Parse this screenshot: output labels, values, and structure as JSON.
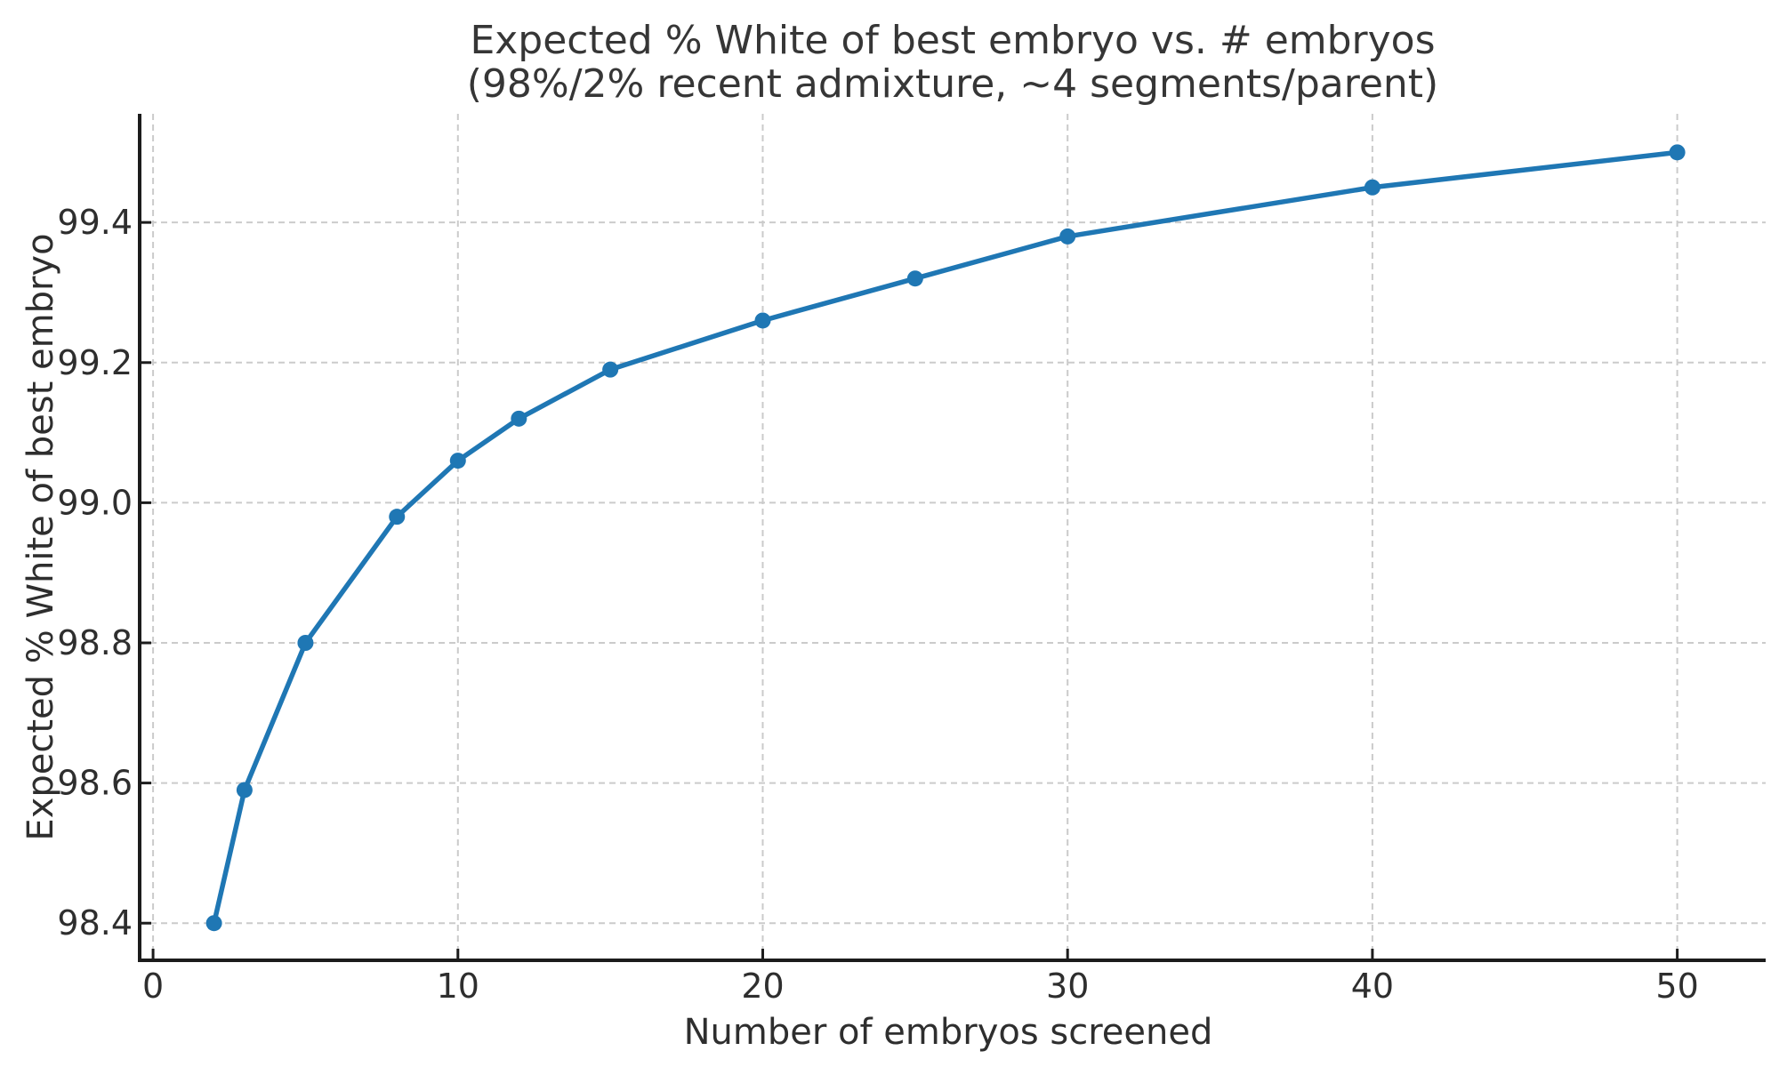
{
  "page": {
    "background_color": "#ffffff"
  },
  "chart_data": {
    "type": "line",
    "title": "Expected % White of best embryo vs. # embryos (98%/2% recent admixture, ~4 segments/parent)",
    "title_line1": "Expected % White of best embryo vs. # embryos",
    "title_line2": "(98%/2% recent admixture, ~4 segments/parent)",
    "xlabel": "Number of embryos screened",
    "ylabel": "Expected % White of best embryo",
    "x": [
      2,
      3,
      5,
      8,
      10,
      12,
      15,
      20,
      25,
      30,
      40,
      50
    ],
    "values": [
      98.4,
      98.59,
      98.8,
      98.98,
      99.06,
      99.12,
      99.19,
      99.26,
      99.32,
      99.38,
      99.45,
      99.5
    ],
    "series_name": "Expected % White of best embryo",
    "xticks": [
      0,
      10,
      20,
      30,
      40,
      50
    ],
    "xtick_labels": [
      "0",
      "10",
      "20",
      "30",
      "40",
      "50"
    ],
    "yticks": [
      98.4,
      98.6,
      98.8,
      99.0,
      99.2,
      99.4
    ],
    "ytick_labels": [
      "98.4",
      "98.6",
      "98.8",
      "99.0",
      "99.2",
      "99.4"
    ],
    "xlim": [
      -0.44,
      52.9
    ],
    "ylim": [
      98.347,
      99.555
    ],
    "grid": true,
    "grid_style": "dashed",
    "legend": "none",
    "marker": "circle",
    "colors": {
      "line": "#1f77b4",
      "marker": "#1f77b4",
      "grid": "#cbcbcb",
      "spine": "#1c1c1c",
      "tick": "#1c1c1c",
      "tick_text": "#2e2e2e",
      "title_text": "#363636",
      "background": "#ffffff"
    }
  }
}
